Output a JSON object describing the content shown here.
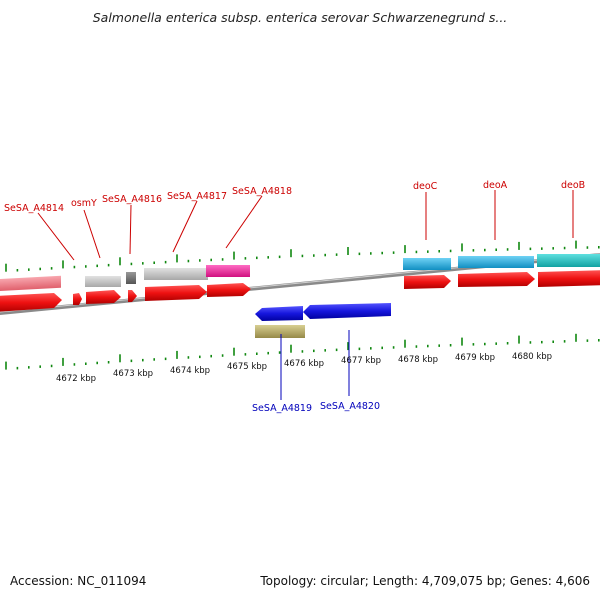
{
  "header": {
    "title": "Salmonella enterica subsp. enterica serovar Schwarzenegrund s..."
  },
  "footer": {
    "accession": "Accession: NC_011094",
    "topology": "Topology: circular; Length: 4,709,075 bp; Genes: 4,606"
  },
  "scale": {
    "ticks": [
      "4672 kbp",
      "4673 kbp",
      "4674 kbp",
      "4675 kbp",
      "4676 kbp",
      "4677 kbp",
      "4678 kbp",
      "4679 kbp",
      "4680 kbp"
    ]
  },
  "gene_labels": {
    "top": [
      "SeSA_A4814",
      "osmY",
      "SeSA_A4816",
      "SeSA_A4817",
      "SeSA_A4818",
      "deoC",
      "deoA",
      "deoB"
    ],
    "bottom": [
      "SeSA_A4819",
      "SeSA_A4820"
    ]
  },
  "colors": {
    "forward_label": "#cc0000",
    "reverse_label": "#0000bb",
    "cds_red": "#ee1111",
    "pink_feature": "#f07f8a",
    "gray_feature": "#c4c4c4",
    "dark_gray_feature": "#777777",
    "magenta_feature": "#ee2aa0",
    "cyan_feature": "#22aadd",
    "teal_feature": "#1dbfbf",
    "blue_cds": "#1616dd",
    "olive_feature": "#b8ad6a",
    "tick_green": "#118811",
    "backbone": "#8a8a8a"
  }
}
